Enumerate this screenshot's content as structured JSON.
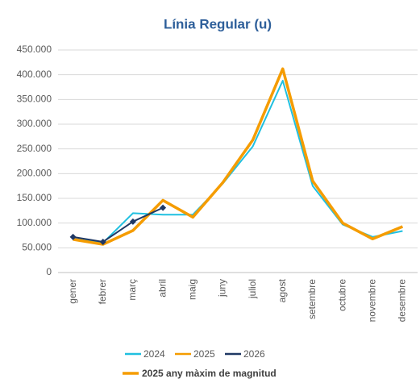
{
  "chart_data": {
    "type": "line",
    "title": "Línia Regular (u)",
    "categories": [
      "gener",
      "febrer",
      "març",
      "abril",
      "maig",
      "juny",
      "juliol",
      "agost",
      "setembre",
      "octubre",
      "novembre",
      "desembre"
    ],
    "series": [
      {
        "name": "2024",
        "color": "#20c0e0",
        "width": 2,
        "marker": false,
        "values": [
          68000,
          60000,
          120000,
          117000,
          117000,
          180000,
          255000,
          388000,
          175000,
          97000,
          72000,
          84000
        ]
      },
      {
        "name": "2025",
        "color": "#f59c00",
        "width": 3.5,
        "marker": false,
        "values": [
          67000,
          57000,
          85000,
          146000,
          112000,
          182000,
          268000,
          412000,
          185000,
          100000,
          68000,
          93000
        ]
      },
      {
        "name": "2026",
        "color": "#1f3864",
        "width": 2,
        "marker": true,
        "values": [
          72000,
          62000,
          103000,
          131000,
          null,
          null,
          null,
          null,
          null,
          null,
          null,
          null
        ]
      }
    ],
    "annotation": "2025 any màxim de magnitud",
    "ylim": [
      0,
      450000
    ],
    "yticks": [
      0,
      {
        "value": 50000,
        "label": "50.000"
      },
      {
        "value": 100000,
        "label": "100.000"
      },
      {
        "value": 150000,
        "label": "150.000"
      },
      {
        "value": 200000,
        "label": "200.000"
      },
      {
        "value": 250000,
        "label": "250.000"
      },
      {
        "value": 300000,
        "label": "300.000"
      },
      {
        "value": 350000,
        "label": "350.000"
      },
      {
        "value": 400000,
        "label": "400.000"
      },
      {
        "value": 450000,
        "label": "450.000"
      }
    ],
    "grid": true
  }
}
